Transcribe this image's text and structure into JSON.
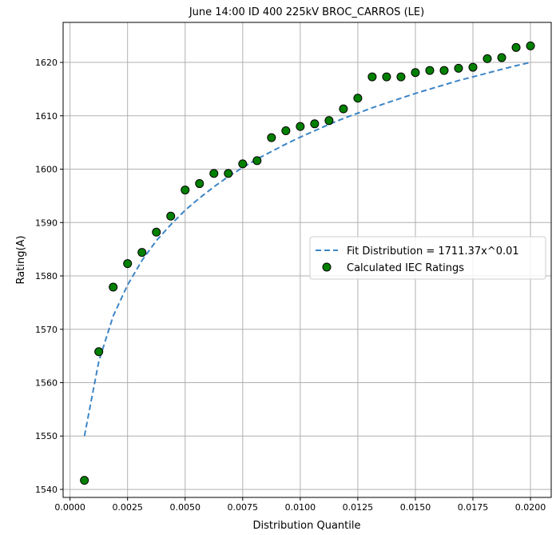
{
  "chart_data": {
    "type": "scatter",
    "title": "June 14:00 ID 400 225kV  BROC_CARROS (LE)",
    "xlabel": "Distribution Quantile",
    "ylabel": "Rating(A)",
    "xlim": [
      -0.0003,
      0.0209
    ],
    "ylim": [
      1538.5,
      1627.5
    ],
    "xticks": [
      0.0,
      0.0025,
      0.005,
      0.0075,
      0.01,
      0.0125,
      0.015,
      0.0175,
      0.02
    ],
    "xtick_labels": [
      "0.0000",
      "0.0025",
      "0.0050",
      "0.0075",
      "0.0100",
      "0.0125",
      "0.0150",
      "0.0175",
      "0.0200"
    ],
    "yticks": [
      1540,
      1550,
      1560,
      1570,
      1580,
      1590,
      1600,
      1610,
      1620
    ],
    "ytick_labels": [
      "1540",
      "1550",
      "1560",
      "1570",
      "1580",
      "1590",
      "1600",
      "1610",
      "1620"
    ],
    "grid": true,
    "legend_position": "center-right",
    "series": [
      {
        "name": "Fit Distribution = 1711.37x^0.01",
        "kind": "line",
        "style": "dashed",
        "color": "#3d85c6",
        "x": [
          0.000625,
          0.00125,
          0.001875,
          0.0025,
          0.003125,
          0.00375,
          0.004375,
          0.005,
          0.005625,
          0.00625,
          0.006875,
          0.0075,
          0.008125,
          0.00875,
          0.009375,
          0.01,
          0.010625,
          0.01125,
          0.011875,
          0.0125,
          0.013125,
          0.01375,
          0.014375,
          0.015,
          0.015625,
          0.01625,
          0.016875,
          0.0175,
          0.018125,
          0.01875,
          0.019375,
          0.02
        ],
        "y": [
          1550.0,
          1564.0,
          1572.5,
          1578.3,
          1582.9,
          1586.6,
          1589.6,
          1592.3,
          1594.6,
          1596.7,
          1598.6,
          1600.3,
          1601.9,
          1603.3,
          1604.7,
          1606.0,
          1607.2,
          1608.4,
          1609.5,
          1610.5,
          1611.5,
          1612.4,
          1613.3,
          1614.2,
          1615.0,
          1615.8,
          1616.6,
          1617.3,
          1618.0,
          1618.7,
          1619.4,
          1620.0
        ]
      },
      {
        "name": "Calculated IEC Ratings",
        "kind": "scatter",
        "color": "#008000",
        "edgecolor": "#000000",
        "x": [
          0.000625,
          0.00125,
          0.001875,
          0.0025,
          0.003125,
          0.00375,
          0.004375,
          0.005,
          0.005625,
          0.00625,
          0.006875,
          0.0075,
          0.008125,
          0.00875,
          0.009375,
          0.01,
          0.010625,
          0.01125,
          0.011875,
          0.0125,
          0.013125,
          0.01375,
          0.014375,
          0.015,
          0.015625,
          0.01625,
          0.016875,
          0.0175,
          0.018125,
          0.01875,
          0.019375,
          0.02
        ],
        "y": [
          1541.7,
          1565.8,
          1577.9,
          1582.3,
          1584.4,
          1588.2,
          1591.2,
          1596.1,
          1597.3,
          1599.2,
          1599.2,
          1601.0,
          1601.6,
          1605.9,
          1607.2,
          1608.0,
          1608.5,
          1609.1,
          1611.3,
          1613.3,
          1617.3,
          1617.3,
          1617.3,
          1618.1,
          1618.5,
          1618.5,
          1618.9,
          1619.1,
          1620.7,
          1620.9,
          1622.8,
          1623.1
        ]
      }
    ]
  }
}
